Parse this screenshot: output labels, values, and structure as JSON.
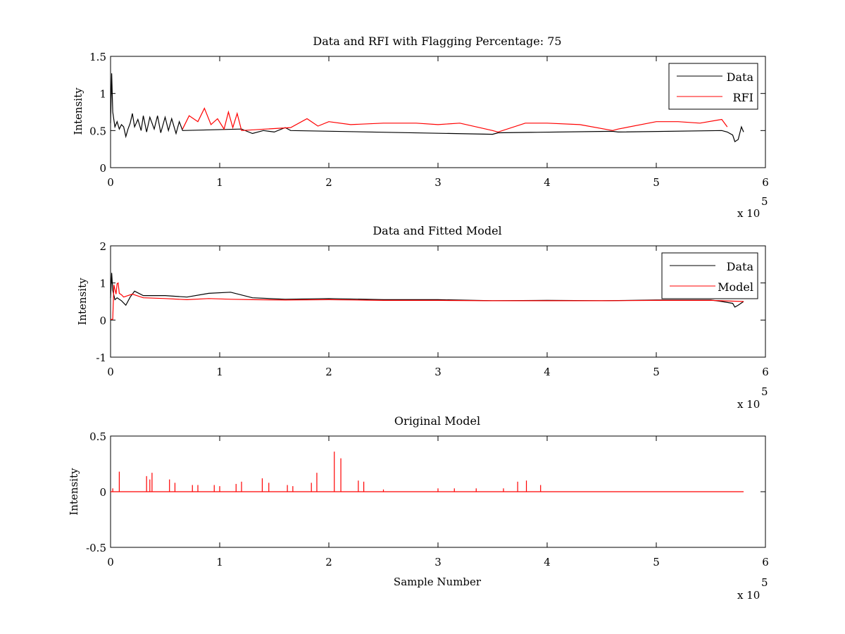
{
  "figure": {
    "background": "#ffffff",
    "multiplier_text": "x 10",
    "multiplier_exponent": "5"
  },
  "chart_data": [
    {
      "type": "line",
      "title": "Data and RFI with Flagging Percentage: 75",
      "xlabel": "",
      "ylabel": "Intensity",
      "xlim": [
        0,
        6
      ],
      "ylim": [
        0,
        1.5
      ],
      "xticks": [
        "0",
        "1",
        "2",
        "3",
        "4",
        "5",
        "6"
      ],
      "yticks": [
        "0",
        "0.5",
        "1",
        "1.5"
      ],
      "xtick_values": [
        0,
        1,
        2,
        3,
        4,
        5,
        6
      ],
      "ytick_values": [
        0,
        0.5,
        1,
        1.5
      ],
      "legend_position": "top-right",
      "legend": [
        "Data",
        "RFI"
      ],
      "series": [
        {
          "name": "Data",
          "color": "#000000",
          "x": [
            0,
            0.01,
            0.02,
            0.04,
            0.06,
            0.08,
            0.1,
            0.12,
            0.14,
            0.16,
            0.18,
            0.2,
            0.22,
            0.25,
            0.28,
            0.3,
            0.33,
            0.36,
            0.4,
            0.43,
            0.46,
            0.5,
            0.53,
            0.56,
            0.6,
            0.63,
            0.66,
            1.2,
            1.3,
            1.4,
            1.5,
            1.6,
            1.65,
            3.5,
            3.55,
            4.6,
            4.65,
            5.6,
            5.65,
            5.7,
            5.72,
            5.75,
            5.78,
            5.8
          ],
          "y": [
            0.6,
            1.27,
            0.75,
            0.55,
            0.62,
            0.52,
            0.58,
            0.55,
            0.42,
            0.52,
            0.6,
            0.73,
            0.55,
            0.65,
            0.5,
            0.7,
            0.48,
            0.68,
            0.52,
            0.7,
            0.47,
            0.68,
            0.5,
            0.66,
            0.46,
            0.62,
            0.5,
            0.52,
            0.46,
            0.5,
            0.48,
            0.54,
            0.5,
            0.45,
            0.47,
            0.49,
            0.48,
            0.5,
            0.48,
            0.44,
            0.35,
            0.38,
            0.55,
            0.48
          ]
        },
        {
          "name": "RFI",
          "color": "#ff0000",
          "x": [
            0.66,
            0.72,
            0.8,
            0.86,
            0.92,
            0.98,
            1.04,
            1.08,
            1.12,
            1.16,
            1.2,
            1.65,
            1.8,
            1.9,
            2.0,
            2.2,
            2.5,
            2.8,
            3.0,
            3.2,
            3.5,
            3.55,
            3.8,
            4.0,
            4.3,
            4.6,
            4.65,
            5.0,
            5.2,
            5.4,
            5.6,
            5.65
          ],
          "y": [
            0.52,
            0.7,
            0.62,
            0.8,
            0.58,
            0.66,
            0.52,
            0.75,
            0.54,
            0.73,
            0.5,
            0.54,
            0.66,
            0.56,
            0.62,
            0.58,
            0.6,
            0.6,
            0.58,
            0.6,
            0.5,
            0.48,
            0.6,
            0.6,
            0.58,
            0.5,
            0.52,
            0.62,
            0.62,
            0.6,
            0.65,
            0.55
          ]
        }
      ]
    },
    {
      "type": "line",
      "title": "Data and Fitted Model",
      "xlabel": "",
      "ylabel": "Intensity",
      "xlim": [
        0,
        6
      ],
      "ylim": [
        -1,
        2
      ],
      "xticks": [
        "0",
        "1",
        "2",
        "3",
        "4",
        "5",
        "6"
      ],
      "yticks": [
        "-1",
        "0",
        "1",
        "2"
      ],
      "xtick_values": [
        0,
        1,
        2,
        3,
        4,
        5,
        6
      ],
      "ytick_values": [
        -1,
        0,
        1,
        2
      ],
      "legend_position": "top-right",
      "legend": [
        "Data",
        "Model"
      ],
      "series": [
        {
          "name": "Data",
          "color": "#000000",
          "x": [
            0,
            0.01,
            0.02,
            0.04,
            0.06,
            0.1,
            0.14,
            0.18,
            0.22,
            0.3,
            0.5,
            0.7,
            0.9,
            1.1,
            1.3,
            1.6,
            2.0,
            2.5,
            3.0,
            3.5,
            4.0,
            4.5,
            5.0,
            5.5,
            5.6,
            5.7,
            5.72,
            5.75,
            5.8
          ],
          "y": [
            0.6,
            1.27,
            0.8,
            0.55,
            0.6,
            0.52,
            0.4,
            0.62,
            0.78,
            0.66,
            0.66,
            0.62,
            0.72,
            0.75,
            0.6,
            0.56,
            0.58,
            0.55,
            0.55,
            0.52,
            0.53,
            0.52,
            0.54,
            0.54,
            0.5,
            0.45,
            0.35,
            0.4,
            0.5
          ]
        },
        {
          "name": "Model",
          "color": "#ff0000",
          "x": [
            0,
            0.02,
            0.03,
            0.05,
            0.06,
            0.07,
            0.08,
            0.1,
            0.12,
            0.15,
            0.2,
            0.3,
            0.5,
            0.7,
            0.9,
            1.1,
            1.3,
            1.6,
            2.0,
            2.5,
            3.0,
            3.5,
            4.0,
            4.5,
            5.0,
            5.5,
            5.8
          ],
          "y": [
            0.02,
            0.02,
            0.95,
            0.7,
            0.98,
            1.0,
            0.72,
            0.68,
            0.62,
            0.65,
            0.7,
            0.6,
            0.58,
            0.55,
            0.58,
            0.56,
            0.55,
            0.54,
            0.55,
            0.53,
            0.53,
            0.52,
            0.52,
            0.52,
            0.53,
            0.53,
            0.5
          ]
        }
      ]
    },
    {
      "type": "line",
      "title": "Original Model",
      "xlabel": "Sample Number",
      "ylabel": "Intensity",
      "xlim": [
        0,
        6
      ],
      "ylim": [
        -0.5,
        0.5
      ],
      "xticks": [
        "0",
        "1",
        "2",
        "3",
        "4",
        "5",
        "6"
      ],
      "yticks": [
        "-0.5",
        "0",
        "0.5"
      ],
      "xtick_values": [
        0,
        1,
        2,
        3,
        4,
        5,
        6
      ],
      "ytick_values": [
        -0.5,
        0,
        0.5
      ],
      "legend_position": "none",
      "legend": [],
      "series": [
        {
          "name": "",
          "color": "#ff0000",
          "x": [
            0,
            5.8
          ],
          "y": [
            0,
            0
          ],
          "spikes": [
            [
              0.02,
              0.03
            ],
            [
              0.08,
              0.18
            ],
            [
              0.33,
              0.14
            ],
            [
              0.36,
              0.11
            ],
            [
              0.38,
              0.17
            ],
            [
              0.54,
              0.11
            ],
            [
              0.59,
              0.08
            ],
            [
              0.75,
              0.06
            ],
            [
              0.8,
              0.06
            ],
            [
              0.95,
              0.06
            ],
            [
              1.0,
              0.05
            ],
            [
              1.15,
              0.07
            ],
            [
              1.2,
              0.09
            ],
            [
              1.39,
              0.12
            ],
            [
              1.45,
              0.08
            ],
            [
              1.62,
              0.06
            ],
            [
              1.67,
              0.05
            ],
            [
              1.84,
              0.08
            ],
            [
              1.89,
              0.17
            ],
            [
              2.05,
              0.36
            ],
            [
              2.11,
              0.3
            ],
            [
              2.27,
              0.1
            ],
            [
              2.32,
              0.09
            ],
            [
              2.5,
              0.02
            ],
            [
              3.0,
              0.03
            ],
            [
              3.15,
              0.03
            ],
            [
              3.35,
              0.03
            ],
            [
              3.6,
              0.03
            ],
            [
              3.73,
              0.09
            ],
            [
              3.81,
              0.1
            ],
            [
              3.94,
              0.06
            ]
          ]
        }
      ]
    }
  ]
}
